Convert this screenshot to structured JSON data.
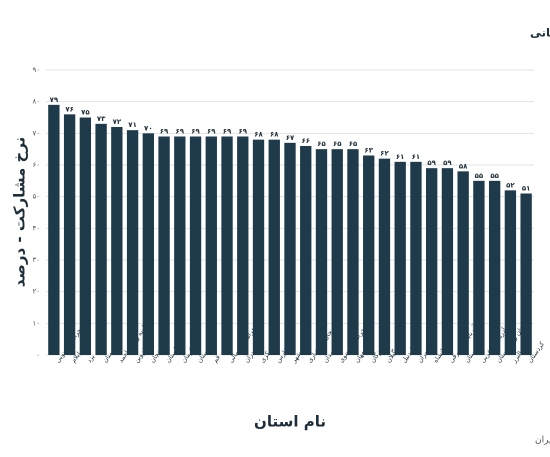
{
  "chart_data": {
    "type": "bar",
    "title": "میانگین نرخ مشارکت در سیزده دوره انتخابات ریاست جمهوری به تفکیک استانی",
    "y_label": "نرخ مشارکت - درصد",
    "x_label": "نام استان",
    "source": "منبع: مرکز آمار ایران",
    "categories": [
      "خراسان جنوبی",
      "ایلام",
      "یزد",
      "سمنان",
      "کهگیلویه و بویر احمد",
      "قزوین",
      "زنجان",
      "گلستان",
      "کرمان",
      "لرستان",
      "قم",
      "خراسان شمالی",
      "مازندران",
      "مرکزی",
      "فارس",
      "بوشهر",
      "چهار محال و بختیاری",
      "همدان",
      "خراسان رضوی",
      "اصفهان",
      "هرمزگان",
      "گیلان",
      "اردبیل",
      "تهران",
      "کرمانشاه",
      "آذربایجان شرقی",
      "خوزستان",
      "آذربایجان غربی",
      "سیستان و بلوچستان",
      "البرز",
      "کردستان"
    ],
    "values": [
      79,
      76,
      75,
      73,
      72,
      71,
      70,
      69,
      69,
      69,
      69,
      69,
      69,
      68,
      68,
      67,
      66,
      65,
      65,
      65,
      63,
      62,
      61,
      61,
      59,
      59,
      58,
      55,
      55,
      52,
      51
    ],
    "value_labels": [
      "۷۹",
      "۷۶",
      "۷۵",
      "۷۳",
      "۷۲",
      "۷۱",
      "۷۰",
      "۶۹",
      "۶۹",
      "۶۹",
      "۶۹",
      "۶۹",
      "۶۹",
      "۶۸",
      "۶۸",
      "۶۷",
      "۶۶",
      "۶۵",
      "۶۵",
      "۶۵",
      "۶۳",
      "۶۲",
      "۶۱",
      "۶۱",
      "۵۹",
      "۵۹",
      "۵۸",
      "۵۵",
      "۵۵",
      "۵۲",
      "۵۱"
    ],
    "color": "#1f3a4a",
    "ylim": [
      0,
      90
    ],
    "yticks": [
      {
        "value": 0,
        "label": "۰"
      },
      {
        "value": 10,
        "label": "۱۰"
      },
      {
        "value": 20,
        "label": "۲۰"
      },
      {
        "value": 30,
        "label": "۳۰"
      },
      {
        "value": 40,
        "label": "۴۰"
      },
      {
        "value": 50,
        "label": "۵۰"
      },
      {
        "value": 60,
        "label": "۶۰"
      },
      {
        "value": 70,
        "label": "۷۰"
      },
      {
        "value": 80,
        "label": "۸۰"
      },
      {
        "value": 90,
        "label": "۹۰"
      }
    ],
    "grid": true
  }
}
